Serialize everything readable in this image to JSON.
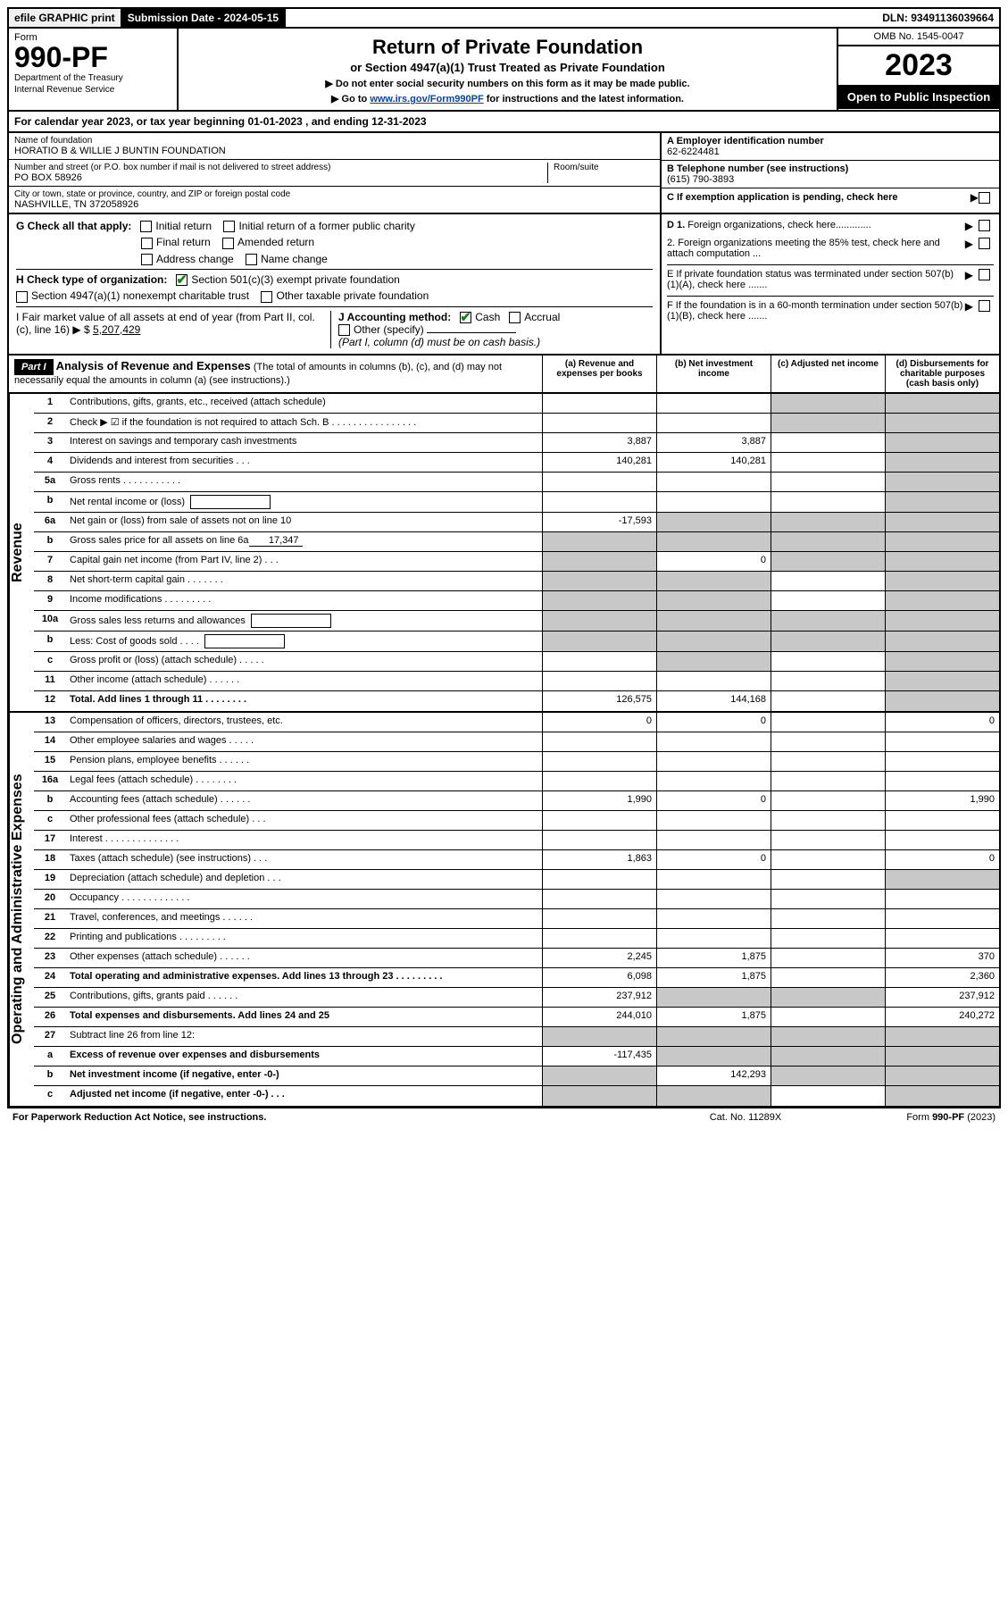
{
  "top_bar": {
    "efile": "efile GRAPHIC print",
    "submission_label": "Submission Date - 2024-05-15",
    "dln": "DLN: 93491136039664"
  },
  "header": {
    "form_label": "Form",
    "form_no": "990-PF",
    "dept1": "Department of the Treasury",
    "dept2": "Internal Revenue Service",
    "title": "Return of Private Foundation",
    "subtitle": "or Section 4947(a)(1) Trust Treated as Private Foundation",
    "instr1": "▶ Do not enter social security numbers on this form as it may be made public.",
    "instr2_pre": "▶ Go to ",
    "instr2_link": "www.irs.gov/Form990PF",
    "instr2_post": " for instructions and the latest information.",
    "omb": "OMB No. 1545-0047",
    "year": "2023",
    "open": "Open to Public Inspection"
  },
  "cal_year": "For calendar year 2023, or tax year beginning 01-01-2023            , and ending 12-31-2023",
  "foundation": {
    "name_lbl": "Name of foundation",
    "name": "HORATIO B & WILLIE J BUNTIN FOUNDATION",
    "addr_lbl": "Number and street (or P.O. box number if mail is not delivered to street address)",
    "addr": "PO BOX 58926",
    "room_lbl": "Room/suite",
    "city_lbl": "City or town, state or province, country, and ZIP or foreign postal code",
    "city": "NASHVILLE, TN  372058926",
    "ein_lbl": "A Employer identification number",
    "ein": "62-6224481",
    "tel_lbl": "B Telephone number (see instructions)",
    "tel": "(615) 790-3893",
    "c_lbl": "C If exemption application is pending, check here"
  },
  "section_g": {
    "label": "G Check all that apply:",
    "opts": [
      "Initial return",
      "Initial return of a former public charity",
      "Final return",
      "Amended return",
      "Address change",
      "Name change"
    ]
  },
  "section_h": {
    "label": "H Check type of organization:",
    "opt1": "Section 501(c)(3) exempt private foundation",
    "opt2": "Section 4947(a)(1) nonexempt charitable trust",
    "opt3": "Other taxable private foundation"
  },
  "section_i": {
    "label": "I Fair market value of all assets at end of year (from Part II, col. (c), line 16)",
    "arrow": "▶ $",
    "value": "5,207,429"
  },
  "section_j": {
    "label": "J Accounting method:",
    "cash": "Cash",
    "accrual": "Accrual",
    "other": "Other (specify)",
    "note": "(Part I, column (d) must be on cash basis.)"
  },
  "section_d": {
    "d1": "D 1. Foreign organizations, check here.............",
    "d2": "2. Foreign organizations meeting the 85% test, check here and attach computation ...",
    "e": "E  If private foundation status was terminated under section 507(b)(1)(A), check here .......",
    "f": "F  If the foundation is in a 60-month termination under section 507(b)(1)(B), check here .......",
    "arrow": "▶"
  },
  "part1": {
    "label": "Part I",
    "title": "Analysis of Revenue and Expenses",
    "note": " (The total of amounts in columns (b), (c), and (d) may not necessarily equal the amounts in column (a) (see instructions).)",
    "cols": [
      "(a)   Revenue and expenses per books",
      "(b)   Net investment income",
      "(c)   Adjusted net income",
      "(d)   Disbursements for charitable purposes (cash basis only)"
    ]
  },
  "side_labels": {
    "revenue": "Revenue",
    "expenses": "Operating and Administrative Expenses"
  },
  "lines": [
    {
      "no": "1",
      "desc": "Contributions, gifts, grants, etc., received (attach schedule)",
      "a": "",
      "b": "",
      "c": "s",
      "d": "s"
    },
    {
      "no": "2",
      "desc": "Check ▶ ☑ if the foundation is not required to attach Sch. B   .  .  .  .  .  .  .  .  .  .  .  .  .  .  .  .",
      "a": "",
      "b": "",
      "c": "s",
      "d": "s",
      "bold_not": true
    },
    {
      "no": "3",
      "desc": "Interest on savings and temporary cash investments",
      "a": "3,887",
      "b": "3,887",
      "c": "",
      "d": "s"
    },
    {
      "no": "4",
      "desc": "Dividends and interest from securities   .   .   .",
      "a": "140,281",
      "b": "140,281",
      "c": "",
      "d": "s"
    },
    {
      "no": "5a",
      "desc": "Gross rents   .   .   .   .   .   .   .   .   .   .   .",
      "a": "",
      "b": "",
      "c": "",
      "d": "s"
    },
    {
      "no": "b",
      "desc": "Net rental income or (loss)",
      "a": "",
      "b": "",
      "c": "",
      "d": "s",
      "box": true
    },
    {
      "no": "6a",
      "desc": "Net gain or (loss) from sale of assets not on line 10",
      "a": "-17,593",
      "b": "s",
      "c": "s",
      "d": "s"
    },
    {
      "no": "b",
      "desc": "Gross sales price for all assets on line 6a",
      "a": "s",
      "b": "s",
      "c": "s",
      "d": "s",
      "inline": "17,347"
    },
    {
      "no": "7",
      "desc": "Capital gain net income (from Part IV, line 2)   .   .   .",
      "a": "s",
      "b": "0",
      "c": "s",
      "d": "s"
    },
    {
      "no": "8",
      "desc": "Net short-term capital gain   .   .   .   .   .   .   .",
      "a": "s",
      "b": "s",
      "c": "",
      "d": "s"
    },
    {
      "no": "9",
      "desc": "Income modifications   .   .   .   .   .   .   .   .   .",
      "a": "s",
      "b": "s",
      "c": "",
      "d": "s"
    },
    {
      "no": "10a",
      "desc": "Gross sales less returns and allowances",
      "a": "s",
      "b": "s",
      "c": "s",
      "d": "s",
      "box": true
    },
    {
      "no": "b",
      "desc": "Less: Cost of goods sold   .   .   .   .",
      "a": "s",
      "b": "s",
      "c": "s",
      "d": "s",
      "box": true
    },
    {
      "no": "c",
      "desc": "Gross profit or (loss) (attach schedule)   .   .   .   .   .",
      "a": "",
      "b": "s",
      "c": "",
      "d": "s"
    },
    {
      "no": "11",
      "desc": "Other income (attach schedule)   .   .   .   .   .   .",
      "a": "",
      "b": "",
      "c": "",
      "d": "s"
    },
    {
      "no": "12",
      "desc": "Total. Add lines 1 through 11   .   .   .   .   .   .   .   .",
      "a": "126,575",
      "b": "144,168",
      "c": "",
      "d": "s",
      "bold": true
    }
  ],
  "exp_lines": [
    {
      "no": "13",
      "desc": "Compensation of officers, directors, trustees, etc.",
      "a": "0",
      "b": "0",
      "c": "",
      "d": "0"
    },
    {
      "no": "14",
      "desc": "Other employee salaries and wages   .   .   .   .   .",
      "a": "",
      "b": "",
      "c": "",
      "d": ""
    },
    {
      "no": "15",
      "desc": "Pension plans, employee benefits   .   .   .   .   .   .",
      "a": "",
      "b": "",
      "c": "",
      "d": ""
    },
    {
      "no": "16a",
      "desc": "Legal fees (attach schedule)   .   .   .   .   .   .   .   .",
      "a": "",
      "b": "",
      "c": "",
      "d": ""
    },
    {
      "no": "b",
      "desc": "Accounting fees (attach schedule)   .   .   .   .   .   .",
      "a": "1,990",
      "b": "0",
      "c": "",
      "d": "1,990"
    },
    {
      "no": "c",
      "desc": "Other professional fees (attach schedule)   .   .   .",
      "a": "",
      "b": "",
      "c": "",
      "d": ""
    },
    {
      "no": "17",
      "desc": "Interest   .   .   .   .   .   .   .   .   .   .   .   .   .   .",
      "a": "",
      "b": "",
      "c": "",
      "d": ""
    },
    {
      "no": "18",
      "desc": "Taxes (attach schedule) (see instructions)   .   .   .",
      "a": "1,863",
      "b": "0",
      "c": "",
      "d": "0"
    },
    {
      "no": "19",
      "desc": "Depreciation (attach schedule) and depletion   .   .   .",
      "a": "",
      "b": "",
      "c": "",
      "d": "s"
    },
    {
      "no": "20",
      "desc": "Occupancy   .   .   .   .   .   .   .   .   .   .   .   .   .",
      "a": "",
      "b": "",
      "c": "",
      "d": ""
    },
    {
      "no": "21",
      "desc": "Travel, conferences, and meetings   .   .   .   .   .   .",
      "a": "",
      "b": "",
      "c": "",
      "d": ""
    },
    {
      "no": "22",
      "desc": "Printing and publications   .   .   .   .   .   .   .   .   .",
      "a": "",
      "b": "",
      "c": "",
      "d": ""
    },
    {
      "no": "23",
      "desc": "Other expenses (attach schedule)   .   .   .   .   .   .",
      "a": "2,245",
      "b": "1,875",
      "c": "",
      "d": "370"
    },
    {
      "no": "24",
      "desc": "Total operating and administrative expenses. Add lines 13 through 23   .   .   .   .   .   .   .   .   .",
      "a": "6,098",
      "b": "1,875",
      "c": "",
      "d": "2,360",
      "bold": true
    },
    {
      "no": "25",
      "desc": "Contributions, gifts, grants paid   .   .   .   .   .   .",
      "a": "237,912",
      "b": "s",
      "c": "s",
      "d": "237,912"
    },
    {
      "no": "26",
      "desc": "Total expenses and disbursements. Add lines 24 and 25",
      "a": "244,010",
      "b": "1,875",
      "c": "",
      "d": "240,272",
      "bold": true
    },
    {
      "no": "27",
      "desc": "Subtract line 26 from line 12:",
      "a": "s",
      "b": "s",
      "c": "s",
      "d": "s"
    },
    {
      "no": "a",
      "desc": "Excess of revenue over expenses and disbursements",
      "a": "-117,435",
      "b": "s",
      "c": "s",
      "d": "s",
      "bold": true
    },
    {
      "no": "b",
      "desc": "Net investment income (if negative, enter -0-)",
      "a": "s",
      "b": "142,293",
      "c": "s",
      "d": "s",
      "bold": true
    },
    {
      "no": "c",
      "desc": "Adjusted net income (if negative, enter -0-)   .   .   .",
      "a": "s",
      "b": "s",
      "c": "",
      "d": "s",
      "bold": true
    }
  ],
  "footer": {
    "left": "For Paperwork Reduction Act Notice, see instructions.",
    "center": "Cat. No. 11289X",
    "right": "Form 990-PF (2023)"
  },
  "colors": {
    "link": "#0645ad",
    "check": "#1a7f1a",
    "shade": "#c8c8c8"
  }
}
